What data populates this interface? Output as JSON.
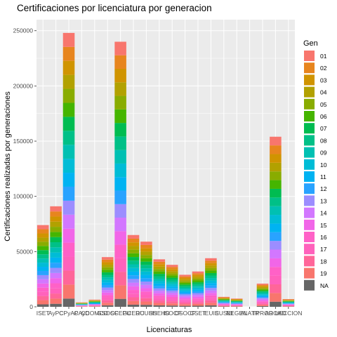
{
  "chart_data": {
    "type": "bar",
    "stacked": true,
    "title": "Certificaciones por licenciatura por generacion",
    "xlabel": "Licenciaturas",
    "ylabel": "Certificaciones realizadas por generaciones",
    "ylim": [
      0,
      260000
    ],
    "yticks": [
      0,
      50000,
      100000,
      150000,
      200000,
      250000
    ],
    "ytick_labels": [
      "0",
      "50000",
      "100000",
      "150000",
      "200000",
      "250000"
    ],
    "grid": true,
    "legend_title": "Gen",
    "legend_position": "right",
    "categories": [
      "ISET",
      "AyPC",
      "CPyAP",
      "CAyD",
      "CCOMCO",
      "GSOCF",
      "SCEPU",
      "GCEDU",
      "RCUSH",
      "HSEHD",
      "ISOCF",
      "DSOCF",
      "CSET",
      "IEUIS",
      "EUSEI",
      "NEGEN",
      "ALATR",
      "TPROD",
      "AROAD",
      "UECCION"
    ],
    "tick_labels": [
      "ISET",
      "AyPC",
      "CPyAP",
      "CAyD",
      "CCOMCO",
      "GSOCF",
      "SCEPU",
      "GCEDU",
      "RCUSH",
      "HSEHD",
      "ISOCF",
      "DSOCF",
      "CSET",
      "IEUIS",
      "EUSEI",
      "NEGEN",
      "ALATR",
      "TPROD",
      "AROAD",
      "UECCION"
    ],
    "totals": [
      74000,
      91000,
      248000,
      4000,
      6500,
      45000,
      240000,
      65000,
      59000,
      43000,
      38000,
      29000,
      32000,
      44000,
      9000,
      7500,
      0,
      21000,
      154000,
      7000
    ],
    "series": [
      {
        "name": "01",
        "color": "#F8766D"
      },
      {
        "name": "02",
        "color": "#E7851E"
      },
      {
        "name": "03",
        "color": "#D09400"
      },
      {
        "name": "04",
        "color": "#B2A100"
      },
      {
        "name": "05",
        "color": "#89AC00"
      },
      {
        "name": "06",
        "color": "#45B500"
      },
      {
        "name": "07",
        "color": "#00BC51"
      },
      {
        "name": "08",
        "color": "#00C087"
      },
      {
        "name": "09",
        "color": "#00C0B2"
      },
      {
        "name": "10",
        "color": "#00BCD6"
      },
      {
        "name": "11",
        "color": "#00B3F2"
      },
      {
        "name": "12",
        "color": "#29A3FF"
      },
      {
        "name": "13",
        "color": "#9C8DFF"
      },
      {
        "name": "14",
        "color": "#D277FF"
      },
      {
        "name": "15",
        "color": "#F166E8"
      },
      {
        "name": "16",
        "color": "#FF61C7"
      },
      {
        "name": "17",
        "color": "#FF62BC"
      },
      {
        "name": "18",
        "color": "#FF6699"
      },
      {
        "name": "19",
        "color": "#F8766D"
      },
      {
        "name": "NA",
        "color": "#666666"
      }
    ]
  }
}
